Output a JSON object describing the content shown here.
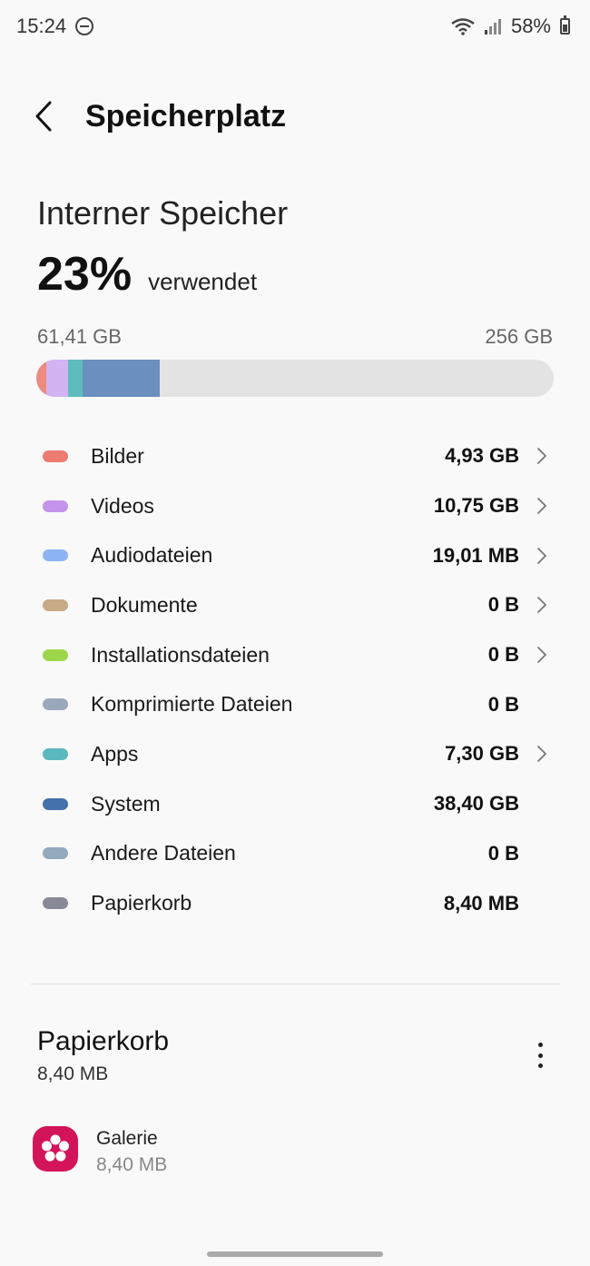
{
  "status_bar": {
    "time": "15:24",
    "battery": "58%",
    "icons": [
      "do-not-disturb-icon",
      "wifi-icon",
      "signal-icon",
      "battery-icon"
    ]
  },
  "header": {
    "title": "Speicherplatz",
    "back_icon": "chevron-left-icon"
  },
  "storage": {
    "label": "Interner Speicher",
    "percent": "23%",
    "used_word": "verwendet",
    "used": "61,41 GB",
    "total": "256 GB",
    "bar_background": "#e3e3e3",
    "bar_segments": [
      {
        "category": "Bilder",
        "fraction": 0.019,
        "color": "#ef8a80"
      },
      {
        "category": "Videos",
        "fraction": 0.042,
        "color": "#d3b3f2"
      },
      {
        "category": "Apps",
        "fraction": 0.028,
        "color": "#5dbdbe"
      },
      {
        "category": "System",
        "fraction": 0.15,
        "color": "#6b8fbe"
      }
    ]
  },
  "categories": [
    {
      "name": "Bilder",
      "size": "4,93 GB",
      "color": "#ec7b70",
      "has_chevron": true
    },
    {
      "name": "Videos",
      "size": "10,75 GB",
      "color": "#c493ec",
      "has_chevron": true
    },
    {
      "name": "Audiodateien",
      "size": "19,01 MB",
      "color": "#8db4f2",
      "has_chevron": true
    },
    {
      "name": "Dokumente",
      "size": "0 B",
      "color": "#c8aa84",
      "has_chevron": true
    },
    {
      "name": "Installationsdateien",
      "size": "0 B",
      "color": "#9ed64a",
      "has_chevron": true
    },
    {
      "name": "Komprimierte Dateien",
      "size": "0 B",
      "color": "#9aa8bc",
      "has_chevron": false
    },
    {
      "name": "Apps",
      "size": "7,30 GB",
      "color": "#5bb8bf",
      "has_chevron": true
    },
    {
      "name": "System",
      "size": "38,40 GB",
      "color": "#4371ac",
      "has_chevron": false
    },
    {
      "name": "Andere Dateien",
      "size": "0 B",
      "color": "#93a9bd",
      "has_chevron": false
    },
    {
      "name": "Papierkorb",
      "size": "8,40 MB",
      "color": "#878995",
      "has_chevron": false
    }
  ],
  "trash": {
    "title": "Papierkorb",
    "size": "8,40 MB",
    "more_icon": "more-vertical-icon",
    "apps": [
      {
        "name": "Galerie",
        "size": "8,40 MB",
        "icon": "gallery-flower-icon",
        "color": "#d3145a"
      }
    ]
  }
}
